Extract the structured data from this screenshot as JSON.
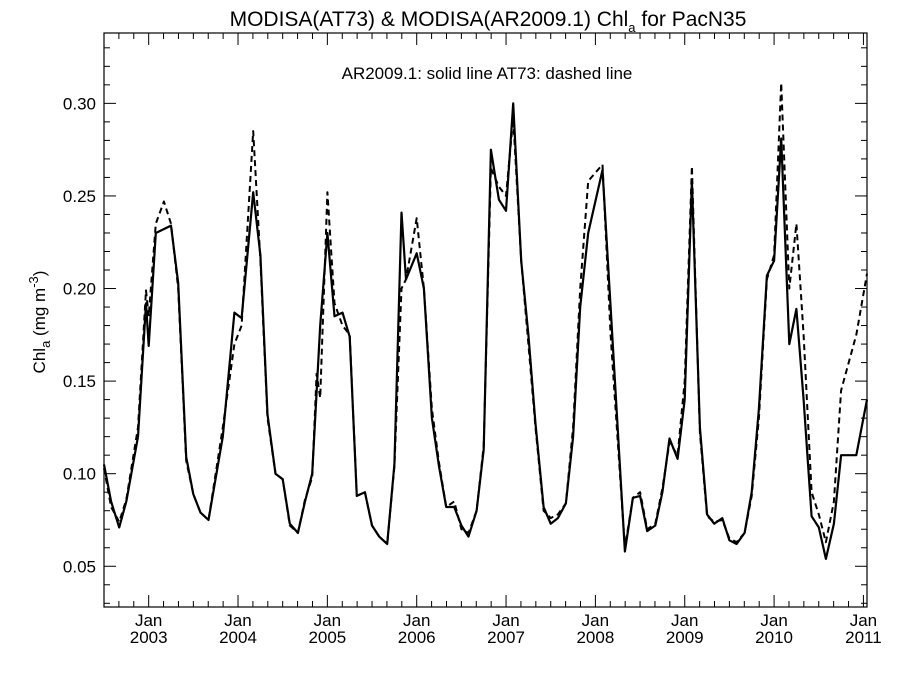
{
  "chart_data": {
    "type": "line",
    "title_main": "MODISA(AT73) & MODISA(AR2009.1)  Chl",
    "title_sub": "a",
    "title_end": " for PacN35",
    "annotation": "AR2009.1: solid line   AT73: dashed line",
    "ylabel_main": "Chl",
    "ylabel_sub": "a",
    "ylabel_unit": " (mg m",
    "ylabel_sup": "-3",
    "ylabel_close": ")",
    "ylim": [
      0.028,
      0.338
    ],
    "y_ticks": [
      "0.05",
      "0.10",
      "0.15",
      "0.20",
      "0.25",
      "0.30"
    ],
    "x_range_years": [
      2002.5,
      2011.04
    ],
    "x_month_label": "Jan",
    "x_ticks": [
      {
        "month": "Jan",
        "year": "2003"
      },
      {
        "month": "Jan",
        "year": "2004"
      },
      {
        "month": "Jan",
        "year": "2005"
      },
      {
        "month": "Jan",
        "year": "2006"
      },
      {
        "month": "Jan",
        "year": "2007"
      },
      {
        "month": "Jan",
        "year": "2008"
      },
      {
        "month": "Jan",
        "year": "2009"
      },
      {
        "month": "Jan",
        "year": "2010"
      },
      {
        "month": "Jan",
        "year": "2011"
      }
    ],
    "grid": false,
    "series": [
      {
        "name": "AR2009.1",
        "style": "solid",
        "points": [
          [
            "2002.50",
            0.105
          ],
          [
            "2002.58",
            0.085
          ],
          [
            "2002.67",
            0.071
          ],
          [
            "2002.75",
            0.085
          ],
          [
            "2002.88",
            0.12
          ],
          [
            "2002.97",
            0.192
          ],
          [
            "2003.00",
            0.169
          ],
          [
            "2003.08",
            0.23
          ],
          [
            "2003.25",
            0.234
          ],
          [
            "2003.33",
            0.203
          ],
          [
            "2003.42",
            0.109
          ],
          [
            "2003.50",
            0.089
          ],
          [
            "2003.58",
            0.079
          ],
          [
            "2003.67",
            0.075
          ],
          [
            "2003.83",
            0.12
          ],
          [
            "2003.96",
            0.187
          ],
          [
            "2004.04",
            0.184
          ],
          [
            "2004.17",
            0.252
          ],
          [
            "2004.25",
            0.218
          ],
          [
            "2004.33",
            0.132
          ],
          [
            "2004.42",
            0.1
          ],
          [
            "2004.50",
            0.097
          ],
          [
            "2004.58",
            0.073
          ],
          [
            "2004.67",
            0.068
          ],
          [
            "2004.75",
            0.085
          ],
          [
            "2004.83",
            0.1
          ],
          [
            "2004.92",
            0.18
          ],
          [
            "2005.00",
            0.23
          ],
          [
            "2005.08",
            0.185
          ],
          [
            "2005.17",
            0.187
          ],
          [
            "2005.25",
            0.174
          ],
          [
            "2005.33",
            0.088
          ],
          [
            "2005.42",
            0.09
          ],
          [
            "2005.50",
            0.072
          ],
          [
            "2005.58",
            0.066
          ],
          [
            "2005.67",
            0.062
          ],
          [
            "2005.75",
            0.105
          ],
          [
            "2005.83",
            0.241
          ],
          [
            "2005.88",
            0.205
          ],
          [
            "2006.00",
            0.219
          ],
          [
            "2006.08",
            0.2
          ],
          [
            "2006.17",
            0.13
          ],
          [
            "2006.25",
            0.104
          ],
          [
            "2006.33",
            0.082
          ],
          [
            "2006.42",
            0.082
          ],
          [
            "2006.50",
            0.072
          ],
          [
            "2006.58",
            0.066
          ],
          [
            "2006.67",
            0.08
          ],
          [
            "2006.75",
            0.113
          ],
          [
            "2006.83",
            0.275
          ],
          [
            "2006.92",
            0.248
          ],
          [
            "2007.00",
            0.242
          ],
          [
            "2007.08",
            0.3
          ],
          [
            "2007.17",
            0.215
          ],
          [
            "2007.25",
            0.175
          ],
          [
            "2007.33",
            0.127
          ],
          [
            "2007.42",
            0.082
          ],
          [
            "2007.50",
            0.073
          ],
          [
            "2007.58",
            0.076
          ],
          [
            "2007.67",
            0.084
          ],
          [
            "2007.75",
            0.12
          ],
          [
            "2007.83",
            0.19
          ],
          [
            "2007.92",
            0.23
          ],
          [
            "2008.08",
            0.264
          ],
          [
            "2008.17",
            0.19
          ],
          [
            "2008.33",
            0.058
          ],
          [
            "2008.42",
            0.087
          ],
          [
            "2008.50",
            0.088
          ],
          [
            "2008.58",
            0.069
          ],
          [
            "2008.67",
            0.072
          ],
          [
            "2008.75",
            0.09
          ],
          [
            "2008.83",
            0.119
          ],
          [
            "2008.92",
            0.108
          ],
          [
            "2009.00",
            0.14
          ],
          [
            "2009.08",
            0.258
          ],
          [
            "2009.17",
            0.125
          ],
          [
            "2009.25",
            0.078
          ],
          [
            "2009.33",
            0.073
          ],
          [
            "2009.42",
            0.076
          ],
          [
            "2009.50",
            0.064
          ],
          [
            "2009.58",
            0.062
          ],
          [
            "2009.67",
            0.068
          ],
          [
            "2009.75",
            0.09
          ],
          [
            "2009.83",
            0.135
          ],
          [
            "2009.92",
            0.207
          ],
          [
            "2010.00",
            0.215
          ],
          [
            "2010.08",
            0.281
          ],
          [
            "2010.17",
            0.17
          ],
          [
            "2010.25",
            0.189
          ],
          [
            "2010.33",
            0.14
          ],
          [
            "2010.42",
            0.077
          ],
          [
            "2010.50",
            0.071
          ],
          [
            "2010.58",
            0.054
          ],
          [
            "2010.67",
            0.073
          ],
          [
            "2010.75",
            0.11
          ],
          [
            "2010.92",
            0.11
          ],
          [
            "2011.04",
            0.14
          ]
        ]
      },
      {
        "name": "AT73",
        "style": "dashed",
        "points": [
          [
            "2002.50",
            0.103
          ],
          [
            "2002.58",
            0.082
          ],
          [
            "2002.67",
            0.074
          ],
          [
            "2002.75",
            0.086
          ],
          [
            "2002.88",
            0.125
          ],
          [
            "2002.97",
            0.199
          ],
          [
            "2003.00",
            0.185
          ],
          [
            "2003.08",
            0.235
          ],
          [
            "2003.17",
            0.247
          ],
          [
            "2003.25",
            0.235
          ],
          [
            "2003.33",
            0.2
          ],
          [
            "2003.42",
            0.107
          ],
          [
            "2003.50",
            0.089
          ],
          [
            "2003.58",
            0.079
          ],
          [
            "2003.67",
            0.075
          ],
          [
            "2003.83",
            0.125
          ],
          [
            "2003.96",
            0.17
          ],
          [
            "2004.04",
            0.18
          ],
          [
            "2004.17",
            0.285
          ],
          [
            "2004.25",
            0.215
          ],
          [
            "2004.33",
            0.13
          ],
          [
            "2004.42",
            0.1
          ],
          [
            "2004.50",
            0.097
          ],
          [
            "2004.58",
            0.072
          ],
          [
            "2004.67",
            0.068
          ],
          [
            "2004.75",
            0.086
          ],
          [
            "2004.83",
            0.098
          ],
          [
            "2004.88",
            0.154
          ],
          [
            "2004.92",
            0.141
          ],
          [
            "2005.00",
            0.252
          ],
          [
            "2005.08",
            0.192
          ],
          [
            "2005.17",
            0.18
          ],
          [
            "2005.25",
            0.175
          ],
          [
            "2005.33",
            0.088
          ],
          [
            "2005.42",
            0.09
          ],
          [
            "2005.50",
            0.072
          ],
          [
            "2005.58",
            0.066
          ],
          [
            "2005.67",
            0.062
          ],
          [
            "2005.75",
            0.104
          ],
          [
            "2005.83",
            0.2
          ],
          [
            "2005.88",
            0.205
          ],
          [
            "2006.00",
            0.238
          ],
          [
            "2006.08",
            0.2
          ],
          [
            "2006.17",
            0.135
          ],
          [
            "2006.25",
            0.106
          ],
          [
            "2006.33",
            0.082
          ],
          [
            "2006.42",
            0.085
          ],
          [
            "2006.50",
            0.07
          ],
          [
            "2006.58",
            0.068
          ],
          [
            "2006.67",
            0.08
          ],
          [
            "2006.75",
            0.115
          ],
          [
            "2006.83",
            0.265
          ],
          [
            "2006.92",
            0.255
          ],
          [
            "2007.00",
            0.25
          ],
          [
            "2007.08",
            0.292
          ],
          [
            "2007.17",
            0.215
          ],
          [
            "2007.25",
            0.17
          ],
          [
            "2007.33",
            0.125
          ],
          [
            "2007.42",
            0.08
          ],
          [
            "2007.50",
            0.076
          ],
          [
            "2007.58",
            0.078
          ],
          [
            "2007.67",
            0.084
          ],
          [
            "2007.75",
            0.125
          ],
          [
            "2007.83",
            0.2
          ],
          [
            "2007.92",
            0.258
          ],
          [
            "2008.08",
            0.267
          ],
          [
            "2008.17",
            0.175
          ],
          [
            "2008.33",
            0.06
          ],
          [
            "2008.42",
            0.087
          ],
          [
            "2008.50",
            0.09
          ],
          [
            "2008.58",
            0.07
          ],
          [
            "2008.67",
            0.073
          ],
          [
            "2008.75",
            0.092
          ],
          [
            "2008.83",
            0.117
          ],
          [
            "2008.92",
            0.11
          ],
          [
            "2009.00",
            0.15
          ],
          [
            "2009.08",
            0.266
          ],
          [
            "2009.17",
            0.122
          ],
          [
            "2009.25",
            0.077
          ],
          [
            "2009.33",
            0.074
          ],
          [
            "2009.42",
            0.075
          ],
          [
            "2009.50",
            0.065
          ],
          [
            "2009.58",
            0.063
          ],
          [
            "2009.67",
            0.068
          ],
          [
            "2009.75",
            0.088
          ],
          [
            "2009.83",
            0.13
          ],
          [
            "2009.92",
            0.205
          ],
          [
            "2010.00",
            0.218
          ],
          [
            "2010.08",
            0.311
          ],
          [
            "2010.17",
            0.2
          ],
          [
            "2010.25",
            0.235
          ],
          [
            "2010.33",
            0.175
          ],
          [
            "2010.42",
            0.09
          ],
          [
            "2010.50",
            0.078
          ],
          [
            "2010.58",
            0.063
          ],
          [
            "2010.67",
            0.085
          ],
          [
            "2010.75",
            0.145
          ],
          [
            "2010.92",
            0.175
          ],
          [
            "2011.04",
            0.208
          ]
        ]
      }
    ]
  }
}
